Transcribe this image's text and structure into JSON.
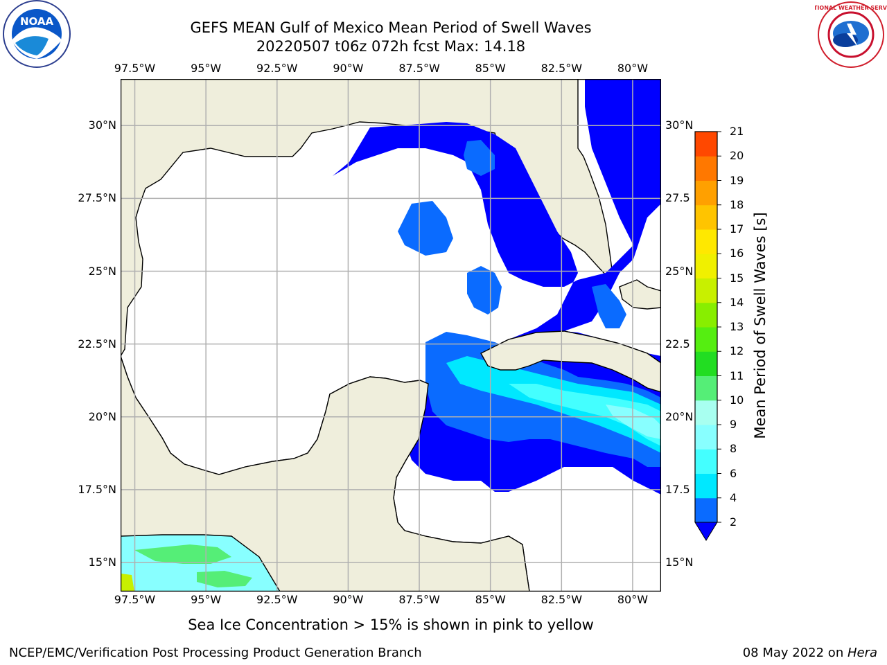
{
  "header": {
    "title": "GEFS MEAN Gulf of Mexico Mean Period of Swell Waves",
    "subtitle": "20220507 t06z 072h fcst   Max: 14.18"
  },
  "logos": {
    "left": "noaa-logo",
    "left_text": "NOAA",
    "right": "national-weather-service-logo",
    "right_text": "NATIONAL WEATHER SERVICE"
  },
  "map": {
    "lon_range": [
      -98.0,
      -79.0
    ],
    "lat_range": [
      14.0,
      31.6
    ],
    "lon_ticks": [
      {
        "value": -97.5,
        "label": "97.5°W"
      },
      {
        "value": -95.0,
        "label": "95°W"
      },
      {
        "value": -92.5,
        "label": "92.5°W"
      },
      {
        "value": -90.0,
        "label": "90°W"
      },
      {
        "value": -87.5,
        "label": "87.5°W"
      },
      {
        "value": -85.0,
        "label": "85°W"
      },
      {
        "value": -82.5,
        "label": "82.5°W"
      },
      {
        "value": -80.0,
        "label": "80°W"
      }
    ],
    "lat_ticks_left": [
      {
        "value": 30.0,
        "label": "30°N"
      },
      {
        "value": 27.5,
        "label": "27.5°N"
      },
      {
        "value": 25.0,
        "label": "25°N"
      },
      {
        "value": 22.5,
        "label": "22.5°N"
      },
      {
        "value": 20.0,
        "label": "20°N"
      },
      {
        "value": 17.5,
        "label": "17.5°N"
      },
      {
        "value": 15.0,
        "label": "15°N"
      }
    ],
    "lat_ticks_right": [
      {
        "value": 30.0,
        "label": "30°N"
      },
      {
        "value": 27.5,
        "label": "27.5"
      },
      {
        "value": 25.0,
        "label": "25°N"
      },
      {
        "value": 22.5,
        "label": "22.5"
      },
      {
        "value": 20.0,
        "label": "20°N"
      },
      {
        "value": 17.5,
        "label": "17.5"
      },
      {
        "value": 15.0,
        "label": "15°N"
      }
    ],
    "colors": {
      "land": "#efeedc",
      "ocean_masked": "#ffffff",
      "grid": "#b0b0b0",
      "coast": "#000000"
    }
  },
  "colorbar": {
    "title": "Mean Period of Swell Waves [s]",
    "labels": [
      "2",
      "4",
      "6",
      "8",
      "9",
      "10",
      "11",
      "12",
      "13",
      "14",
      "15",
      "16",
      "17",
      "18",
      "19",
      "20",
      "21"
    ],
    "colors": [
      "#0a6bff",
      "#00e8ff",
      "#44ffff",
      "#88ffff",
      "#a8fff0",
      "#55ee77",
      "#22dd22",
      "#55ee11",
      "#88ee00",
      "#c8f000",
      "#f0f000",
      "#ffe800",
      "#ffc400",
      "#ffa000",
      "#ff7800",
      "#ff4800",
      "#ff1000"
    ],
    "under_color": "#0000ff"
  },
  "note": "Sea Ice Concentration > 15% is shown in pink to yellow",
  "footer": {
    "left": "NCEP/EMC/Verification Post Processing Product Generation Branch",
    "right_prefix": "08 May 2022 on ",
    "right_host": "Hera"
  }
}
